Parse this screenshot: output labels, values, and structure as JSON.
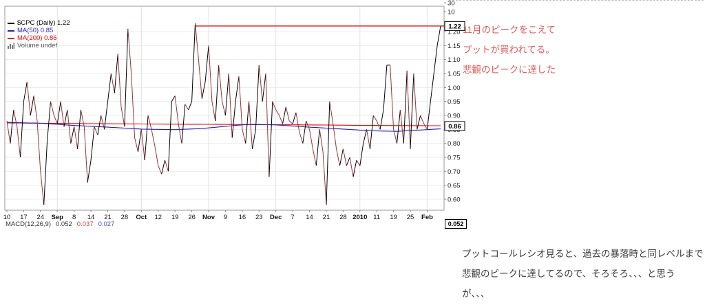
{
  "legend": [
    {
      "label": "$CPC (Daily) 1.22",
      "color": "#000000",
      "swatch": "line"
    },
    {
      "label": "MA(50) 0.85",
      "color": "#2222bb",
      "swatch": "line"
    },
    {
      "label": "MA(200) 0.86",
      "color": "#ee0000",
      "swatch": "line"
    },
    {
      "label": "Volume undef",
      "color": "#555555",
      "swatch": "bars"
    }
  ],
  "upper_panel": {
    "ticks": [
      "30",
      "10"
    ]
  },
  "macd_row": {
    "label": "MACD(12,26,9)",
    "values": [
      {
        "text": "0.052",
        "color": "#333333"
      },
      {
        "text": "0.037",
        "color": "#cc4444"
      },
      {
        "text": "0.027",
        "color": "#4455cc"
      }
    ],
    "axis_box": "0.052"
  },
  "annotations": {
    "right_lines": [
      "11月のピークをこえて",
      "プットが買われてる。",
      "悲観のピークに達した"
    ],
    "right_color": "#e05c5c",
    "bottom_lines": [
      "プットコールレシオ見ると、過去の暴落時と同レベルまで",
      "悲観のピークに達してるので、そろそろ、、、と思う",
      "が、、、"
    ],
    "bottom_color": "#3c3c3c"
  },
  "chart_data": {
    "type": "line",
    "title": "$CPC (Daily)",
    "x_tick_labels": [
      "10",
      "17",
      "24",
      "Sep",
      "8",
      "14",
      "21",
      "28",
      "Oct",
      "12",
      "19",
      "26",
      "Nov",
      "9",
      "16",
      "23",
      "Dec",
      "7",
      "14",
      "21",
      "28",
      "2010",
      "11",
      "19",
      "25",
      "Feb"
    ],
    "month_tick_indexes": [
      3,
      8,
      12,
      16,
      21,
      25
    ],
    "points_per_tick": 5,
    "y_ticks": [
      1.2,
      1.15,
      1.1,
      1.05,
      1.0,
      0.95,
      0.9,
      0.85,
      0.8,
      0.75,
      0.7,
      0.65,
      0.6
    ],
    "ylim": [
      0.56,
      1.25
    ],
    "grid": true,
    "legend_position": "top-left",
    "series": {
      "cpc": {
        "name": "$CPC",
        "up_color": "#000000",
        "down_color": "#993333",
        "last_value": 1.22,
        "values": [
          0.88,
          0.8,
          0.92,
          0.86,
          0.75,
          0.95,
          1.02,
          0.9,
          0.97,
          0.88,
          0.7,
          0.58,
          0.81,
          0.95,
          0.9,
          0.87,
          0.95,
          0.86,
          0.92,
          0.8,
          0.86,
          0.78,
          0.92,
          0.86,
          0.66,
          0.74,
          0.86,
          0.83,
          0.9,
          0.85,
          0.95,
          1.05,
          0.98,
          1.12,
          0.93,
          0.86,
          1.21,
          1.05,
          0.82,
          0.77,
          0.85,
          0.74,
          0.9,
          0.85,
          0.79,
          0.72,
          0.69,
          0.74,
          0.7,
          0.95,
          0.97,
          0.87,
          0.8,
          0.94,
          0.92,
          0.95,
          1.23,
          1.1,
          0.96,
          1.02,
          1.15,
          0.95,
          0.88,
          1.08,
          0.95,
          0.9,
          1.05,
          0.82,
          0.95,
          1.04,
          0.85,
          0.8,
          0.95,
          0.78,
          0.85,
          1.08,
          0.95,
          1.05,
          0.68,
          0.95,
          0.92,
          0.9,
          0.87,
          0.93,
          0.88,
          0.87,
          0.91,
          0.84,
          0.8,
          0.88,
          0.85,
          0.78,
          0.72,
          0.85,
          0.77,
          0.58,
          0.95,
          0.87,
          0.78,
          0.72,
          0.78,
          0.72,
          0.75,
          0.68,
          0.74,
          0.72,
          0.8,
          0.85,
          0.78,
          0.9,
          0.88,
          0.85,
          0.92,
          1.08,
          1.08,
          0.85,
          0.8,
          0.92,
          0.8,
          1.06,
          0.78,
          1.05,
          0.85,
          0.9,
          0.87,
          0.85,
          0.95,
          1.05,
          1.15,
          1.22
        ]
      },
      "ma50": {
        "name": "MA(50)",
        "color": "#2222bb",
        "last_value": 0.85,
        "anchors": [
          [
            0,
            0.875
          ],
          [
            10,
            0.872
          ],
          [
            20,
            0.864
          ],
          [
            30,
            0.858
          ],
          [
            40,
            0.851
          ],
          [
            50,
            0.849
          ],
          [
            58,
            0.853
          ],
          [
            66,
            0.862
          ],
          [
            72,
            0.868
          ],
          [
            80,
            0.866
          ],
          [
            90,
            0.858
          ],
          [
            100,
            0.851
          ],
          [
            108,
            0.845
          ],
          [
            116,
            0.843
          ],
          [
            122,
            0.847
          ],
          [
            129,
            0.852
          ]
        ]
      },
      "ma200": {
        "name": "MA(200)",
        "color": "#ee0000",
        "last_value": 0.86,
        "anchors": [
          [
            0,
            0.873
          ],
          [
            30,
            0.87
          ],
          [
            60,
            0.868
          ],
          [
            90,
            0.866
          ],
          [
            110,
            0.864
          ],
          [
            129,
            0.863
          ]
        ]
      }
    },
    "annotation_line": {
      "value": 1.22,
      "start_index": 56,
      "color": "#cc0000"
    },
    "value_boxes": [
      {
        "text": "1.22",
        "value": 1.22
      },
      {
        "text": "0.86",
        "value": 0.862
      }
    ]
  }
}
